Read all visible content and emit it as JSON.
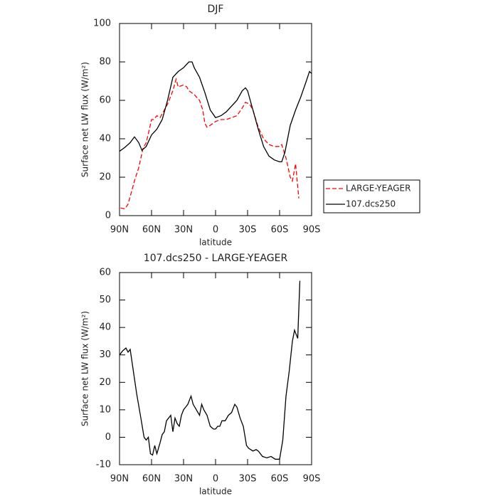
{
  "chart_data": [
    {
      "type": "line",
      "title": "DJF",
      "xlabel": "latitude",
      "ylabel": "Surface net LW flux (W/m²)",
      "xlim": [
        90,
        -90
      ],
      "ylim": [
        0,
        100
      ],
      "xticks": [
        {
          "value": 90,
          "label": "90N"
        },
        {
          "value": 60,
          "label": "60N"
        },
        {
          "value": 30,
          "label": "30N"
        },
        0,
        {
          "value": -30,
          "label": "30S"
        },
        {
          "value": -60,
          "label": "60S"
        },
        {
          "value": -90,
          "label": "90S"
        }
      ],
      "yticks": [
        0,
        20,
        40,
        60,
        80,
        100
      ],
      "legend": "right",
      "series": [
        {
          "name": "LARGE-YEAGER",
          "color": "#ff0000",
          "dash": "dashed",
          "x": [
            89,
            85,
            82,
            80,
            76,
            72,
            68,
            65,
            62,
            60,
            58,
            55,
            52,
            50,
            45,
            40,
            37,
            35,
            30,
            27,
            25,
            20,
            15,
            12,
            10,
            8,
            5,
            0,
            -5,
            -10,
            -15,
            -20,
            -25,
            -28,
            -32,
            -35,
            -40,
            -45,
            -50,
            -55,
            -60,
            -62,
            -66,
            -70,
            -72,
            -75,
            -78
          ],
          "values": [
            4,
            3.5,
            6,
            10,
            18,
            25,
            35,
            38,
            45,
            50,
            50,
            52,
            51,
            53,
            58,
            65,
            71,
            67,
            68,
            67,
            65,
            63,
            60,
            55,
            48,
            46,
            47,
            49,
            50,
            50,
            51,
            52,
            56,
            59,
            58,
            55,
            46,
            40,
            37,
            36,
            36,
            37,
            30,
            20,
            18,
            27,
            9
          ]
        },
        {
          "name": "107.dcs250",
          "color": "#000000",
          "dash": "solid",
          "x": [
            90,
            85,
            80,
            76,
            72,
            69,
            65,
            60,
            55,
            50,
            45,
            40,
            35,
            30,
            25,
            22,
            20,
            15,
            10,
            5,
            0,
            -5,
            -10,
            -15,
            -20,
            -25,
            -28,
            -30,
            -35,
            -40,
            -45,
            -50,
            -55,
            -60,
            -62,
            -65,
            -70,
            -75,
            -80,
            -85,
            -88,
            -90
          ],
          "values": [
            33.5,
            35.5,
            38,
            41,
            38,
            34,
            36,
            42,
            45,
            50,
            60,
            72,
            75,
            77,
            80,
            80,
            77,
            72,
            64,
            55,
            51,
            52,
            54,
            57,
            60,
            65,
            66.5,
            65,
            55,
            45,
            36,
            31,
            29,
            28,
            28,
            33,
            47,
            55,
            62,
            70,
            75,
            74
          ]
        }
      ]
    },
    {
      "type": "line",
      "title": "107.dcs250 - LARGE-YEAGER",
      "xlabel": "latitude",
      "ylabel": "Surface net LW flux (W/m²)",
      "xlim": [
        90,
        -90
      ],
      "ylim": [
        -10,
        60
      ],
      "xticks": [
        {
          "value": 90,
          "label": "90N"
        },
        {
          "value": 60,
          "label": "60N"
        },
        {
          "value": 30,
          "label": "30N"
        },
        0,
        {
          "value": -30,
          "label": "30S"
        },
        {
          "value": -60,
          "label": "60S"
        },
        {
          "value": -90,
          "label": "90S"
        }
      ],
      "yticks": [
        -10,
        0,
        10,
        20,
        30,
        40,
        50,
        60
      ],
      "series": [
        {
          "color": "#000000",
          "dash": "solid",
          "x": [
            90,
            87,
            84,
            82,
            80,
            77,
            74,
            70,
            67,
            65,
            63,
            61,
            59,
            57,
            55,
            52,
            50,
            48,
            46,
            44,
            42,
            40,
            38,
            36,
            34,
            32,
            30,
            28,
            26,
            23,
            21,
            18,
            15,
            13,
            11,
            8,
            5,
            2,
            0,
            -2,
            -4,
            -6,
            -9,
            -12,
            -15,
            -18,
            -20,
            -23,
            -26,
            -29,
            -31,
            -35,
            -38,
            -40,
            -44,
            -48,
            -52,
            -56,
            -60,
            -63,
            -66,
            -69,
            -72,
            -74,
            -77,
            -79
          ],
          "values": [
            30,
            31.5,
            32.5,
            31,
            32,
            24,
            16,
            7,
            0,
            -1,
            0,
            -6,
            -6.5,
            -3,
            -6,
            -2,
            1,
            2,
            6,
            7,
            8,
            2,
            7,
            5,
            4,
            8,
            10,
            11,
            12,
            15,
            12,
            10,
            8,
            12,
            10,
            8,
            4,
            3,
            3,
            4,
            4,
            6,
            6,
            8,
            9,
            12,
            11,
            7,
            4,
            -3,
            -4,
            -5,
            -4.5,
            -5,
            -7,
            -7.5,
            -7,
            -8,
            -8,
            -1,
            15,
            24,
            35,
            39,
            36,
            57
          ]
        }
      ]
    }
  ]
}
